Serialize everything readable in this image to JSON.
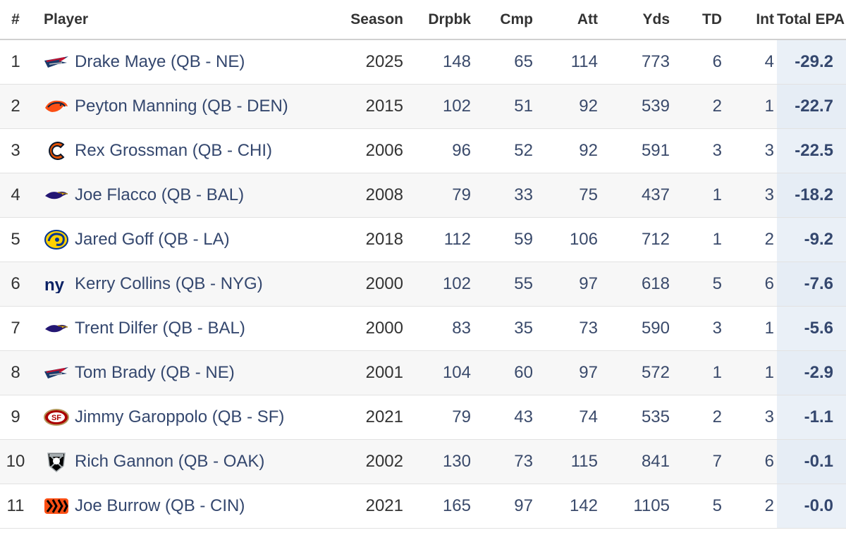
{
  "table": {
    "headers": {
      "rank": "#",
      "player": "Player",
      "season": "Season",
      "drpbk": "Drpbk",
      "cmp": "Cmp",
      "att": "Att",
      "yds": "Yds",
      "td": "TD",
      "int": "Int",
      "epa": "Total EPA"
    },
    "sort": {
      "column": "epa",
      "direction": "ascending"
    },
    "rows": [
      {
        "rank": "1",
        "player": "Drake Maye (QB - NE)",
        "logo": "patriots-logo",
        "season": "2025",
        "drpbk": "148",
        "cmp": "65",
        "att": "114",
        "yds": "773",
        "td": "6",
        "int": "4",
        "epa": "-29.2"
      },
      {
        "rank": "2",
        "player": "Peyton Manning (QB - DEN)",
        "logo": "broncos-logo",
        "season": "2015",
        "drpbk": "102",
        "cmp": "51",
        "att": "92",
        "yds": "539",
        "td": "2",
        "int": "1",
        "epa": "-22.7"
      },
      {
        "rank": "3",
        "player": "Rex Grossman (QB - CHI)",
        "logo": "bears-logo",
        "season": "2006",
        "drpbk": "96",
        "cmp": "52",
        "att": "92",
        "yds": "591",
        "td": "3",
        "int": "3",
        "epa": "-22.5"
      },
      {
        "rank": "4",
        "player": "Joe Flacco (QB - BAL)",
        "logo": "ravens-logo",
        "season": "2008",
        "drpbk": "79",
        "cmp": "33",
        "att": "75",
        "yds": "437",
        "td": "1",
        "int": "3",
        "epa": "-18.2"
      },
      {
        "rank": "5",
        "player": "Jared Goff (QB - LA)",
        "logo": "rams-logo",
        "season": "2018",
        "drpbk": "112",
        "cmp": "59",
        "att": "106",
        "yds": "712",
        "td": "1",
        "int": "2",
        "epa": "-9.2"
      },
      {
        "rank": "6",
        "player": "Kerry Collins (QB - NYG)",
        "logo": "giants-logo",
        "season": "2000",
        "drpbk": "102",
        "cmp": "55",
        "att": "97",
        "yds": "618",
        "td": "5",
        "int": "6",
        "epa": "-7.6"
      },
      {
        "rank": "7",
        "player": "Trent Dilfer (QB - BAL)",
        "logo": "ravens-logo",
        "season": "2000",
        "drpbk": "83",
        "cmp": "35",
        "att": "73",
        "yds": "590",
        "td": "3",
        "int": "1",
        "epa": "-5.6"
      },
      {
        "rank": "8",
        "player": "Tom Brady (QB - NE)",
        "logo": "patriots-logo",
        "season": "2001",
        "drpbk": "104",
        "cmp": "60",
        "att": "97",
        "yds": "572",
        "td": "1",
        "int": "1",
        "epa": "-2.9"
      },
      {
        "rank": "9",
        "player": "Jimmy Garoppolo (QB - SF)",
        "logo": "49ers-logo",
        "season": "2021",
        "drpbk": "79",
        "cmp": "43",
        "att": "74",
        "yds": "535",
        "td": "2",
        "int": "3",
        "epa": "-1.1"
      },
      {
        "rank": "10",
        "player": "Rich Gannon (QB - OAK)",
        "logo": "raiders-logo",
        "season": "2002",
        "drpbk": "130",
        "cmp": "73",
        "att": "115",
        "yds": "841",
        "td": "7",
        "int": "6",
        "epa": "-0.1"
      },
      {
        "rank": "11",
        "player": "Joe Burrow (QB - CIN)",
        "logo": "bengals-logo",
        "season": "2021",
        "drpbk": "165",
        "cmp": "97",
        "att": "142",
        "yds": "1105",
        "td": "5",
        "int": "2",
        "epa": "-0.0"
      }
    ]
  },
  "colors": {
    "link": "#34476e",
    "highlight_column": "#eaf0f7",
    "stripe": "#f7f7f7"
  }
}
